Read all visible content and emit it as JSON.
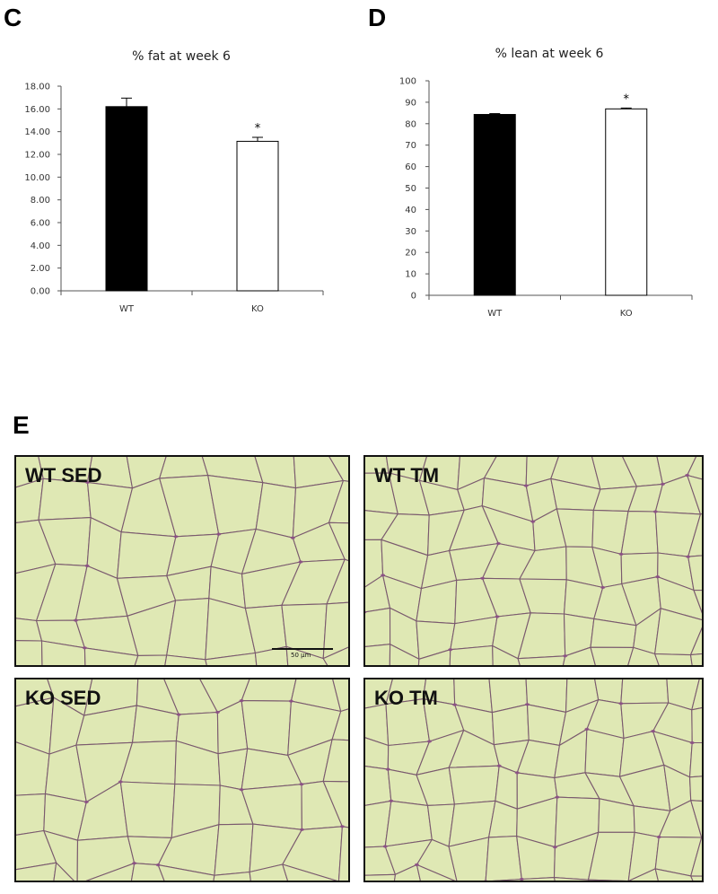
{
  "panels": {
    "c": "C",
    "d": "D",
    "e": "E"
  },
  "chart_data": [
    {
      "type": "bar",
      "title": "% fat at week 6",
      "categories": [
        "WT",
        "KO"
      ],
      "values": [
        16.2,
        13.15
      ],
      "errors": [
        0.75,
        0.35
      ],
      "significance": [
        "",
        "*"
      ],
      "bar_fill": [
        "#000000",
        "#ffffff"
      ],
      "ylim": [
        0,
        18
      ],
      "yticks": [
        "0.00",
        "2.00",
        "4.00",
        "6.00",
        "8.00",
        "10.00",
        "12.00",
        "14.00",
        "16.00",
        "18.00"
      ],
      "xlabel": "",
      "ylabel": ""
    },
    {
      "type": "bar",
      "title": "% lean at week 6",
      "categories": [
        "WT",
        "KO"
      ],
      "values": [
        84.3,
        86.9
      ],
      "errors": [
        0.4,
        0.4
      ],
      "significance": [
        "",
        "*"
      ],
      "bar_fill": [
        "#000000",
        "#ffffff"
      ],
      "ylim": [
        0,
        100
      ],
      "yticks": [
        "0",
        "10",
        "20",
        "30",
        "40",
        "50",
        "60",
        "70",
        "80",
        "90",
        "100"
      ],
      "xlabel": "",
      "ylabel": ""
    }
  ],
  "micrographs": [
    {
      "label": "WT SED",
      "scale_bar": "50 µm"
    },
    {
      "label": "WT TM",
      "scale_bar": ""
    },
    {
      "label": "KO SED",
      "scale_bar": ""
    },
    {
      "label": "KO TM",
      "scale_bar": ""
    }
  ],
  "colors": {
    "tissue_bg": "#e4ebbe",
    "cell_fill": "#dfe8b4",
    "cell_border": "#7a5a6e",
    "nucleus": "#8c4d86"
  }
}
